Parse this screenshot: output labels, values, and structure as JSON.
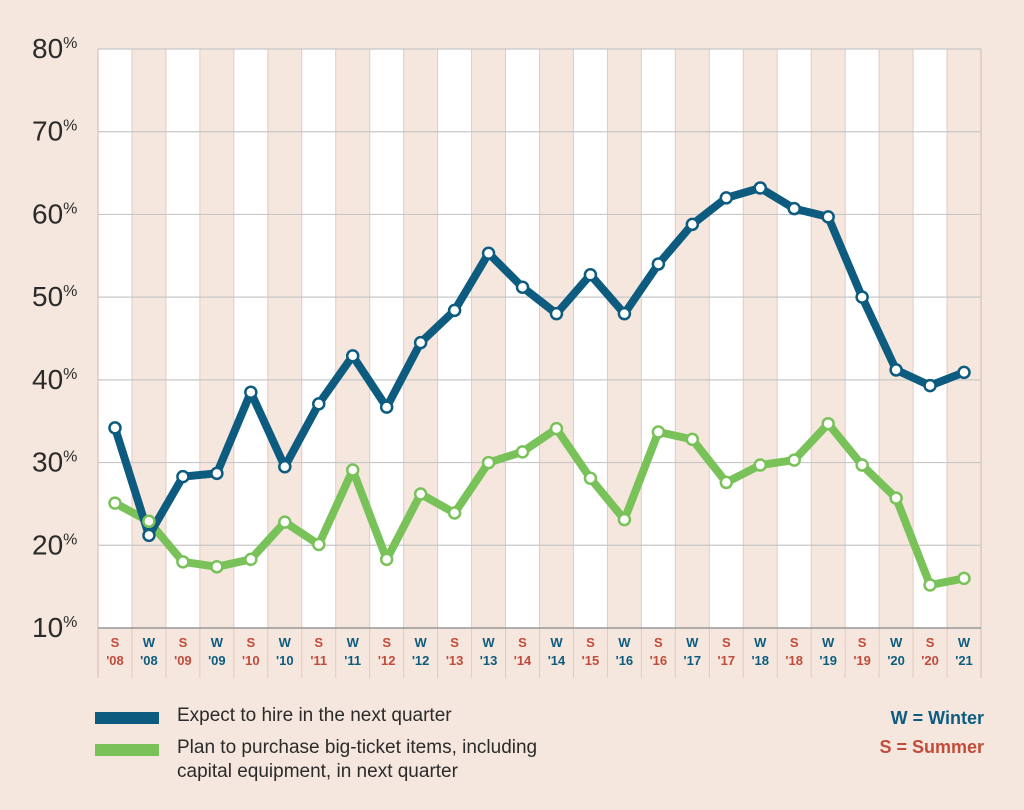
{
  "chart_data": {
    "type": "line",
    "ylim": [
      10,
      80
    ],
    "yticks": [
      "10%",
      "20%",
      "30%",
      "40%",
      "50%",
      "60%",
      "70%",
      "80%"
    ],
    "categories": [
      {
        "season": "S",
        "year": "'08"
      },
      {
        "season": "W",
        "year": "'08"
      },
      {
        "season": "S",
        "year": "'09"
      },
      {
        "season": "W",
        "year": "'09"
      },
      {
        "season": "S",
        "year": "'10"
      },
      {
        "season": "W",
        "year": "'10"
      },
      {
        "season": "S",
        "year": "'11"
      },
      {
        "season": "W",
        "year": "'11"
      },
      {
        "season": "S",
        "year": "'12"
      },
      {
        "season": "W",
        "year": "'12"
      },
      {
        "season": "S",
        "year": "'13"
      },
      {
        "season": "W",
        "year": "'13"
      },
      {
        "season": "S",
        "year": "'14"
      },
      {
        "season": "W",
        "year": "'14"
      },
      {
        "season": "S",
        "year": "'15"
      },
      {
        "season": "W",
        "year": "'16"
      },
      {
        "season": "S",
        "year": "'16"
      },
      {
        "season": "W",
        "year": "'17"
      },
      {
        "season": "S",
        "year": "'17"
      },
      {
        "season": "W",
        "year": "'18"
      },
      {
        "season": "S",
        "year": "'18"
      },
      {
        "season": "W",
        "year": "'19"
      },
      {
        "season": "S",
        "year": "'19"
      },
      {
        "season": "W",
        "year": "'20"
      },
      {
        "season": "S",
        "year": "'20"
      },
      {
        "season": "W",
        "year": "'21"
      }
    ],
    "series": [
      {
        "name": "Expect to hire in the next quarter",
        "color": "#0d5c80",
        "values": [
          34.2,
          21.2,
          28.3,
          28.7,
          38.5,
          29.5,
          37.1,
          42.9,
          36.7,
          44.5,
          48.4,
          55.3,
          51.2,
          48.0,
          52.7,
          48.0,
          54.0,
          58.8,
          62.0,
          63.2,
          60.7,
          59.7,
          50.0,
          41.2,
          39.3,
          40.9
        ]
      },
      {
        "name": "Plan to purchase big-ticket items, including capital equipment, in next quarter",
        "color": "#78c259",
        "values": [
          25.1,
          22.9,
          18.0,
          17.4,
          18.3,
          22.8,
          20.1,
          29.1,
          18.3,
          26.2,
          23.9,
          30.0,
          31.3,
          34.1,
          28.1,
          23.1,
          33.7,
          32.8,
          27.6,
          29.7,
          30.3,
          34.7,
          29.7,
          25.7,
          15.2,
          16.0
        ]
      }
    ]
  },
  "legend": {
    "hire_label": "Expect to hire in the next quarter",
    "purchase_label_line1": "Plan to purchase big-ticket items, including",
    "purchase_label_line2": "capital equipment, in next quarter"
  },
  "key": {
    "winter": "W = Winter",
    "summer": "S = Summer"
  },
  "colors": {
    "winter": "#0d5c80",
    "summer": "#c24b3a",
    "hire": "#0d5c80",
    "purchase": "#78c259"
  }
}
